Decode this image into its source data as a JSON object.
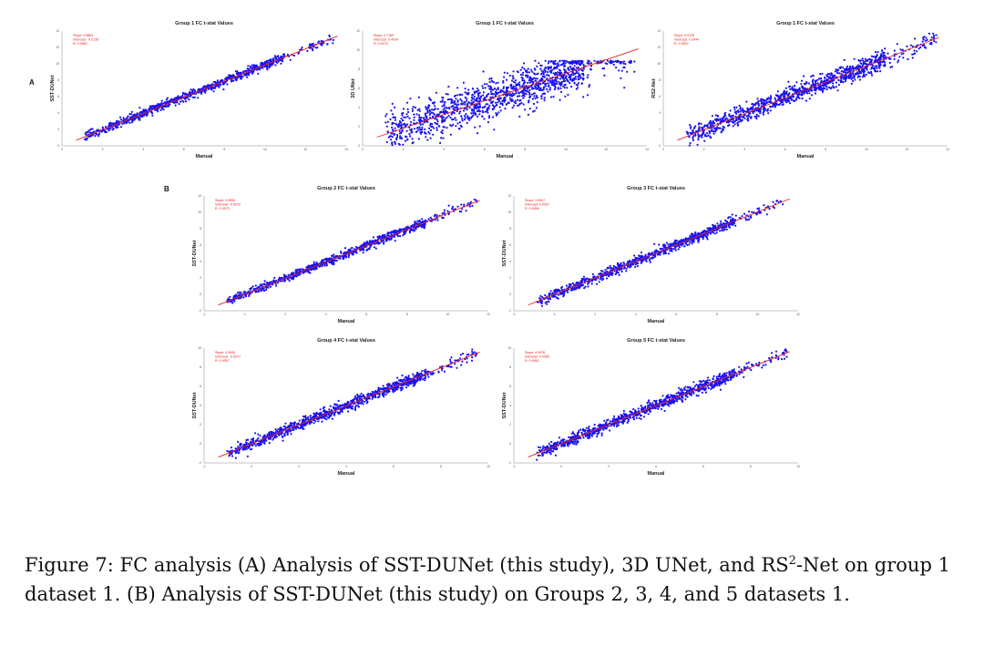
{
  "figure": {
    "panel_a_label": "A",
    "panel_b_label": "B",
    "caption_parts": [
      "Figure 7:   FC analysis (A) Analysis of SST-DUNet (this study), 3D UNet, and RS",
      "2",
      "-Net on group 1 dataset 1. (B) Analysis of SST-DUNet (this study) on Groups 2, 3, 4, and 5 datasets 1."
    ]
  },
  "chart_data": [
    {
      "id": "a1",
      "type": "scatter",
      "title": "Group 1 FC t-stat Values",
      "xlabel": "Manual",
      "ylabel": "SST-DUNet",
      "stats": [
        "Slope: 0.9863",
        "Intercept: -0.0136",
        "R: 0.9963"
      ],
      "xlim": [
        0,
        14
      ],
      "ylim": [
        0,
        14
      ],
      "xticks": [
        "0",
        "2",
        "4",
        "6",
        "8",
        "10",
        "12",
        "14"
      ],
      "yticks": [
        "0",
        "2",
        "4",
        "6",
        "8",
        "10",
        "12",
        "14"
      ],
      "fit": {
        "slope": 0.9863,
        "intercept": -0.0136
      },
      "spread": 0.25,
      "n": 900
    },
    {
      "id": "a2",
      "type": "scatter",
      "title": "Group 1 FC t-stat Values",
      "xlabel": "Manual",
      "ylabel": "3D UNet",
      "stats": [
        "Slope: 0.7169",
        "Intercept: 0.4034",
        "R: 0.9176"
      ],
      "xlim": [
        0,
        14
      ],
      "ylim": [
        0,
        12
      ],
      "xticks": [
        "0",
        "2",
        "4",
        "6",
        "8",
        "10",
        "12",
        "14"
      ],
      "yticks": [
        "0",
        "2",
        "4",
        "6",
        "8",
        "10",
        "12"
      ],
      "fit": {
        "slope": 0.7169,
        "intercept": 0.4034
      },
      "spread": 1.1,
      "n": 1300
    },
    {
      "id": "a3",
      "type": "scatter",
      "title": "Group 1 FC t-stat Values",
      "xlabel": "Manual",
      "ylabel": "RS2-Net",
      "stats": [
        "Slope: 0.9728",
        "Intercept: 0.0044",
        "R: 0.9822"
      ],
      "xlim": [
        0,
        14
      ],
      "ylim": [
        0,
        14
      ],
      "xticks": [
        "0",
        "2",
        "4",
        "6",
        "8",
        "10",
        "12",
        "14"
      ],
      "yticks": [
        "0",
        "2",
        "4",
        "6",
        "8",
        "10",
        "12",
        "14"
      ],
      "fit": {
        "slope": 0.9728,
        "intercept": 0.0044
      },
      "spread": 0.55,
      "n": 1100
    },
    {
      "id": "b1",
      "type": "scatter",
      "title": "Group 2 FC t-stat Values",
      "xlabel": "Manual",
      "ylabel": "SST-DUNet",
      "stats": [
        "Slope: 0.9906",
        "Intercept: -0.0072",
        "R: 0.9973"
      ],
      "xlim": [
        -2,
        12
      ],
      "ylim": [
        -2,
        12
      ],
      "xticks": [
        "-2",
        "0",
        "2",
        "4",
        "6",
        "8",
        "10",
        "12"
      ],
      "yticks": [
        "-2",
        "0",
        "2",
        "4",
        "6",
        "8",
        "10",
        "12"
      ],
      "fit": {
        "slope": 0.9906,
        "intercept": -0.0072
      },
      "spread": 0.25,
      "n": 900
    },
    {
      "id": "b2",
      "type": "scatter",
      "title": "Group 3 FC t-stat Values",
      "xlabel": "Manual",
      "ylabel": "SST-DUNet",
      "stats": [
        "Slope: 1.0047",
        "Intercept: 0.0027",
        "R: 0.9956"
      ],
      "xlim": [
        -2,
        12
      ],
      "ylim": [
        -2,
        12
      ],
      "xticks": [
        "-2",
        "0",
        "2",
        "4",
        "6",
        "8",
        "10",
        "12"
      ],
      "yticks": [
        "-2",
        "0",
        "2",
        "4",
        "6",
        "8",
        "10",
        "12"
      ],
      "fit": {
        "slope": 1.0047,
        "intercept": 0.0027
      },
      "spread": 0.3,
      "n": 900
    },
    {
      "id": "b3",
      "type": "scatter",
      "title": "Group 4 FC t-stat Values",
      "xlabel": "Manual",
      "ylabel": "SST-DUNet",
      "stats": [
        "Slope: 0.9945",
        "Intercept: -0.0077",
        "R: 0.9957"
      ],
      "xlim": [
        -2,
        10
      ],
      "ylim": [
        -2,
        10
      ],
      "xticks": [
        "-2",
        "0",
        "2",
        "4",
        "6",
        "8",
        "10"
      ],
      "yticks": [
        "-2",
        "0",
        "2",
        "4",
        "6",
        "8",
        "10"
      ],
      "fit": {
        "slope": 0.9945,
        "intercept": -0.0077
      },
      "spread": 0.3,
      "n": 1000
    },
    {
      "id": "b4",
      "type": "scatter",
      "title": "Group 5 FC t-stat Values",
      "xlabel": "Manual",
      "ylabel": "SST-DUNet",
      "stats": [
        "Slope: 0.9976",
        "Intercept: 0.0065",
        "R: 0.9961"
      ],
      "xlim": [
        -2,
        10
      ],
      "ylim": [
        -2,
        10
      ],
      "xticks": [
        "-2",
        "0",
        "2",
        "4",
        "6",
        "8",
        "10"
      ],
      "yticks": [
        "-2",
        "0",
        "2",
        "4",
        "6",
        "8",
        "10"
      ],
      "fit": {
        "slope": 0.9976,
        "intercept": 0.0065
      },
      "spread": 0.3,
      "n": 1000
    }
  ]
}
